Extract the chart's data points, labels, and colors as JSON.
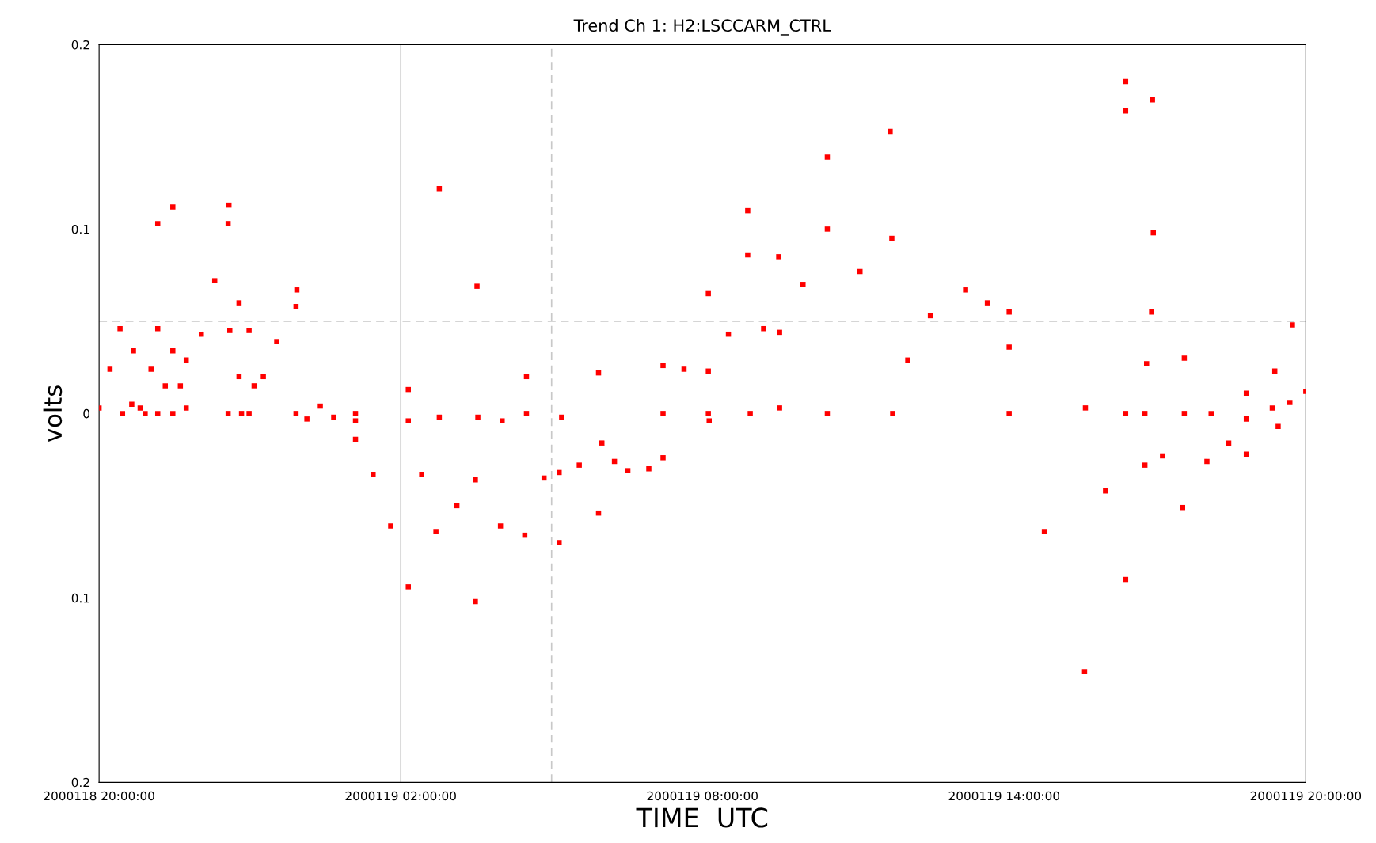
{
  "chart_data": {
    "type": "scatter",
    "title": "Trend Ch 1: H2:LSCCARM_CTRL",
    "xlabel": "TIME  UTC",
    "ylabel": "volts",
    "xlim": [
      "2000-01-18T20:00",
      "2000-01-19T20:00"
    ],
    "xticks": [
      {
        "value": "2000-01-18T20:00",
        "label": "2000118 20:00:00"
      },
      {
        "value": "2000-01-19T02:00",
        "label": "2000119 02:00:00"
      },
      {
        "value": "2000-01-19T08:00",
        "label": "2000119 08:00:00"
      },
      {
        "value": "2000-01-19T14:00",
        "label": "2000119 14:00:00"
      },
      {
        "value": "2000-01-19T20:00",
        "label": "2000119 20:00:00"
      }
    ],
    "ylim": [
      -0.2,
      0.2
    ],
    "yticks": [
      {
        "value": -0.2,
        "label": "0.2"
      },
      {
        "value": -0.1,
        "label": "0.1"
      },
      0,
      {
        "value": 0.1,
        "label": "0.1"
      },
      {
        "value": 0.2,
        "label": "0.2"
      }
    ],
    "grid": false,
    "marker": "square",
    "ref_lines": [
      {
        "axis": "x",
        "value": "2000-01-19T02:00",
        "line_style": "solid",
        "color": "#c8c8c8"
      },
      {
        "axis": "x",
        "value": "2000-01-19T05:00",
        "line_style": "dashed",
        "color": "#c8c8c8"
      },
      {
        "axis": "y",
        "value": 0.05,
        "line_style": "dashed",
        "color": "#c8c8c8"
      }
    ],
    "series": [
      {
        "color": "#ff0000",
        "x": [
          "2000-01-18T20:00",
          "2000-01-18T20:13",
          "2000-01-18T20:25",
          "2000-01-18T20:28",
          "2000-01-18T20:39",
          "2000-01-18T20:49",
          "2000-01-18T20:55",
          "2000-01-18T21:02",
          "2000-01-18T21:10",
          "2000-01-18T21:10",
          "2000-01-18T21:19",
          "2000-01-18T21:28",
          "2000-01-18T21:28",
          "2000-01-18T21:37",
          "2000-01-18T21:44",
          "2000-01-18T21:44",
          "2000-01-18T22:02",
          "2000-01-18T22:18",
          "2000-01-18T22:34",
          "2000-01-18T22:34",
          "2000-01-18T22:47",
          "2000-01-18T22:50",
          "2000-01-18T23:05",
          "2000-01-18T22:59",
          "2000-01-18T23:16",
          "2000-01-18T23:32",
          "2000-01-18T23:55",
          "2000-01-18T23:55",
          "2000-01-19T00:08",
          "2000-01-19T00:24",
          "2000-01-19T00:40",
          "2000-01-19T01:06",
          "2000-01-19T01:06",
          "2000-01-19T01:27",
          "2000-01-19T01:48",
          "2000-01-19T02:09",
          "2000-01-19T02:09",
          "2000-01-19T02:25",
          "2000-01-19T02:42",
          "2000-01-19T02:46",
          "2000-01-19T03:07",
          "2000-01-19T03:29",
          "2000-01-19T03:32",
          "2000-01-19T03:59",
          "2000-01-19T04:01",
          "2000-01-19T04:28",
          "2000-01-19T04:30",
          "2000-01-19T04:51",
          "2000-01-19T05:09",
          "2000-01-19T05:12",
          "2000-01-19T05:33",
          "2000-01-19T05:56",
          "2000-01-19T06:00",
          "2000-01-19T06:15",
          "2000-01-19T06:31",
          "2000-01-19T06:56",
          "2000-01-19T07:13",
          "2000-01-19T07:13",
          "2000-01-19T07:38",
          "2000-01-19T08:07",
          "2000-01-19T08:07",
          "2000-01-19T08:31",
          "2000-01-19T08:54",
          "2000-01-19T09:13",
          "2000-01-19T09:31",
          "2000-01-19T09:32",
          "2000-01-19T10:00",
          "2000-01-19T10:29",
          "2000-01-19T10:29",
          "2000-01-19T11:08",
          "2000-01-19T11:44",
          "2000-01-19T11:47",
          "2000-01-19T12:05",
          "2000-01-19T12:32",
          "2000-01-19T13:14",
          "2000-01-19T13:40",
          "2000-01-19T14:06",
          "2000-01-19T14:06",
          "2000-01-19T14:48",
          "2000-01-19T15:36",
          "2000-01-19T15:37",
          "2000-01-19T16:01",
          "2000-01-19T16:25",
          "2000-01-19T16:25",
          "2000-01-19T16:48",
          "2000-01-19T16:48",
          "2000-01-19T17:09",
          "2000-01-19T17:33",
          "2000-01-19T17:35",
          "2000-01-19T18:02",
          "2000-01-19T18:07",
          "2000-01-19T18:28",
          "2000-01-19T18:49",
          "2000-01-19T18:49",
          "2000-01-19T19:20",
          "2000-01-19T19:41",
          "2000-01-19T20:00",
          "2000-01-18T21:10",
          "2000-01-18T21:28",
          "2000-01-18T20:41",
          "2000-01-18T22:35",
          "2000-01-18T22:36",
          "2000-01-18T22:47",
          "2000-01-18T22:59",
          "2000-01-18T23:56",
          "2000-01-19T01:06",
          "2000-01-19T02:09",
          "2000-01-19T02:46",
          "2000-01-19T03:31",
          "2000-01-19T03:29",
          "2000-01-19T04:30",
          "2000-01-19T05:09",
          "2000-01-19T05:56",
          "2000-01-19T07:13",
          "2000-01-19T08:07",
          "2000-01-19T08:08",
          "2000-01-19T08:54",
          "2000-01-19T08:57",
          "2000-01-19T09:32",
          "2000-01-19T10:29",
          "2000-01-19T11:46",
          "2000-01-19T14:06",
          "2000-01-19T16:25",
          "2000-01-19T16:25",
          "2000-01-19T16:57",
          "2000-01-19T16:58",
          "2000-01-19T16:56",
          "2000-01-19T16:50",
          "2000-01-19T17:35",
          "2000-01-19T18:49",
          "2000-01-19T19:23",
          "2000-01-19T19:44",
          "2000-01-19T19:27"
        ],
        "values": [
          0.003,
          0.024,
          0.046,
          0.0,
          0.005,
          0.003,
          0.0,
          0.024,
          0.046,
          0.0,
          0.015,
          0.034,
          0.0,
          0.015,
          0.029,
          0.003,
          0.043,
          0.072,
          0.103,
          0.0,
          0.02,
          0.0,
          0.015,
          0.0,
          0.02,
          0.039,
          0.058,
          0.0,
          -0.003,
          0.004,
          -0.002,
          -0.014,
          -0.004,
          -0.033,
          -0.061,
          -0.094,
          -0.004,
          -0.033,
          -0.064,
          -0.002,
          -0.05,
          -0.102,
          -0.002,
          -0.061,
          -0.004,
          -0.066,
          0.0,
          -0.035,
          -0.07,
          -0.002,
          -0.028,
          -0.054,
          -0.016,
          -0.026,
          -0.031,
          -0.03,
          -0.024,
          0.0,
          0.024,
          0.065,
          0.0,
          0.043,
          0.086,
          0.046,
          0.085,
          0.003,
          0.07,
          0.139,
          0.0,
          0.077,
          0.153,
          0.0,
          0.029,
          0.053,
          0.067,
          0.06,
          0.036,
          0.0,
          -0.064,
          -0.14,
          0.003,
          -0.042,
          -0.09,
          0.0,
          -0.028,
          0.0,
          -0.023,
          -0.051,
          0.0,
          -0.026,
          0.0,
          -0.016,
          -0.022,
          -0.003,
          0.003,
          0.006,
          0.012,
          0.103,
          0.112,
          0.034,
          0.113,
          0.045,
          0.06,
          0.045,
          0.067,
          0.0,
          0.013,
          0.122,
          0.069,
          -0.036,
          0.02,
          -0.032,
          0.022,
          0.026,
          0.023,
          -0.004,
          0.11,
          0.0,
          0.044,
          0.1,
          0.095,
          0.055,
          0.18,
          0.164,
          0.17,
          0.098,
          0.055,
          0.027,
          0.03,
          0.011,
          0.023,
          0.048,
          -0.007
        ]
      }
    ]
  }
}
